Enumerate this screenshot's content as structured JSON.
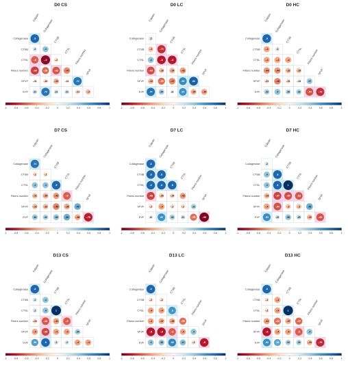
{
  "chart_data": {
    "type": "heatmap",
    "variables": [
      "Calpain",
      "Collagenase",
      "CTSB",
      "CTSL",
      "Fibers number",
      "SFVF",
      "EVF"
    ],
    "colorbar_ticks": [
      "-1",
      "-0.8",
      "-0.6",
      "-0.4",
      "-0.2",
      "0",
      "0.2",
      "0.4",
      "0.6",
      "0.8",
      "1"
    ],
    "colorbar_range": [
      -1,
      1
    ],
    "colors": {
      "negative_end": "#67001f",
      "neutral": "#f7f7f7",
      "positive_end": "#053061",
      "significance_highlight_cyan": "#cdeff8",
      "significance_highlight_pink": "#f9d2ea"
    },
    "panels": [
      {
        "title": "D0 CS",
        "rows": [
          {
            "label": "Collagenase",
            "values": [
              0.8
            ]
          },
          {
            "label": "CTSB",
            "values": [
              0.2,
              0.4
            ]
          },
          {
            "label": "CTSL",
            "values": [
              -0.6,
              -0.9,
              -0.2
            ]
          },
          {
            "label": "Fibers number",
            "values": [
              -0.69,
              -0.56,
              -0.62,
              -0.47
            ]
          },
          {
            "label": "SFVF",
            "values": [
              -0.11,
              -0.19,
              -0.34,
              -0.11,
              0.74
            ]
          },
          {
            "label": "EVF",
            "values": [
              0.21,
              0.74,
              0.21,
              0.21,
              -0.21,
              -0.3
            ]
          }
        ]
      },
      {
        "title": "D0 LC",
        "rows": [
          {
            "label": "Collagenase",
            "values": [
              0.2
            ]
          },
          {
            "label": "CTSB",
            "values": [
              -0.3,
              -0.73
            ]
          },
          {
            "label": "CTSL",
            "values": [
              0.4,
              -0.8,
              -0.8
            ]
          },
          {
            "label": "Fibers number",
            "values": [
              -0.65,
              -0.28,
              -0.34,
              -0.42
            ]
          },
          {
            "label": "SFVF",
            "values": [
              -0.32,
              -0.55,
              -0.47,
              0.65,
              0.83
            ]
          },
          {
            "label": "EVF",
            "values": [
              0.74,
              0.34,
              0.11,
              0.62,
              -0.35,
              -0.39
            ]
          }
        ]
      },
      {
        "title": "D0 HC",
        "rows": [
          {
            "label": "Collagenase",
            "values": [
              0.8
            ]
          },
          {
            "label": "CTSB",
            "values": [
              -0.4,
              0.2
            ]
          },
          {
            "label": "CTSL",
            "values": [
              -0.4,
              -0.4,
              -0.4
            ]
          },
          {
            "label": "Fibers number",
            "values": [
              -0.44,
              -0.44,
              -0.32,
              -0.29
            ]
          },
          {
            "label": "SFVF",
            "values": [
              -0.21,
              -0.48,
              -0.21,
              -0.13,
              0.37
            ]
          },
          {
            "label": "EVF",
            "values": [
              0.32,
              0.4,
              0.28,
              0.32,
              -0.64,
              -0.73
            ]
          }
        ]
      },
      {
        "title": "D7 CS",
        "rows": [
          {
            "label": "Collagenase",
            "values": [
              0.74
            ]
          },
          {
            "label": "CTSB",
            "values": [
              -0.2,
              -0.2
            ]
          },
          {
            "label": "CTSL",
            "values": [
              0.4,
              0.4,
              0.8
            ]
          },
          {
            "label": "Fibers number",
            "values": [
              -0.31,
              -0.35,
              -0.43,
              -0.6
            ]
          },
          {
            "label": "SFVF",
            "values": [
              -0.32,
              -0.32,
              -0.49,
              -0.38,
              0.49
            ]
          },
          {
            "label": "EVF",
            "values": [
              0.36,
              0.32,
              0.38,
              0.49,
              -0.38,
              -0.78
            ]
          }
        ]
      },
      {
        "title": "D7 LC",
        "rows": [
          {
            "label": "Collagenase",
            "values": [
              0.8
            ]
          },
          {
            "label": "CTSB",
            "values": [
              0.8,
              0.8
            ]
          },
          {
            "label": "CTSL",
            "values": [
              0.8,
              0.8,
              0.8
            ]
          },
          {
            "label": "Fibers number",
            "values": [
              -0.68,
              -0.26,
              -0.24,
              -0.42
            ]
          },
          {
            "label": "SFVF",
            "values": [
              -0.2,
              -0.4,
              -0.2,
              -0.2,
              0.32
            ]
          },
          {
            "label": "EVF",
            "values": [
              0.11,
              0.62,
              0.32,
              0.21,
              -0.55,
              -0.95
            ]
          }
        ]
      },
      {
        "title": "D7 HC",
        "rows": [
          {
            "label": "Collagenase",
            "values": [
              0.2
            ]
          },
          {
            "label": "CTSB",
            "values": [
              0.4,
              0.8
            ]
          },
          {
            "label": "CTSL",
            "values": [
              0.4,
              0.8,
              1
            ]
          },
          {
            "label": "Fibers number",
            "values": [
              -0.33,
              -0.67,
              -0.64,
              -0.62
            ]
          },
          {
            "label": "SFVF",
            "values": [
              -0.4,
              -0.64,
              -0.3,
              -0.3,
              0.49
            ]
          },
          {
            "label": "EVF",
            "values": [
              0.63,
              0.21,
              0.38,
              0.25,
              -0.32,
              -0.63
            ]
          }
        ]
      },
      {
        "title": "D13 CS",
        "rows": [
          {
            "label": "Collagenase",
            "values": [
              0.8
            ]
          },
          {
            "label": "CTSB",
            "values": [
              0.2,
              0.4
            ]
          },
          {
            "label": "CTSL",
            "values": [
              0.2,
              0.4,
              1
            ]
          },
          {
            "label": "Fibers number",
            "values": [
              -0.22,
              -0.62,
              -0.41,
              -0.6
            ]
          },
          {
            "label": "SFVF",
            "values": [
              -0.4,
              -0.66,
              -0.4,
              -0.4,
              0.34
            ]
          },
          {
            "label": "EVF",
            "values": [
              0.56,
              0.8,
              0.2,
              0.2,
              -0.4,
              -0.4
            ]
          }
        ]
      },
      {
        "title": "D13 LC",
        "rows": [
          {
            "label": "Collagenase",
            "values": [
              0.8
            ]
          },
          {
            "label": "CTSB",
            "values": [
              -0.2,
              -0.2
            ]
          },
          {
            "label": "CTSL",
            "values": [
              -0.4,
              -0.4,
              0.6
            ]
          },
          {
            "label": "Fibers number",
            "values": [
              -0.4,
              -0.37,
              -0.38,
              -0.55
            ]
          },
          {
            "label": "SFVF",
            "values": [
              -0.8,
              -0.8,
              -0.6,
              -0.4,
              0.4
            ]
          },
          {
            "label": "EVF",
            "values": [
              0.4,
              0.38,
              0.66,
              0.41,
              -0.2,
              -0.8
            ]
          }
        ]
      },
      {
        "title": "D13 HC",
        "rows": [
          {
            "label": "Collagenase",
            "values": [
              0.8
            ]
          },
          {
            "label": "CTSB",
            "values": [
              -0.2,
              -0.4
            ]
          },
          {
            "label": "CTSL",
            "values": [
              -0.2,
              -0.4,
              1
            ]
          },
          {
            "label": "Fibers number",
            "values": [
              -0.41,
              -0.54,
              -0.37,
              -0.57
            ]
          },
          {
            "label": "SFVF",
            "values": [
              -0.8,
              -0.4,
              -0.4,
              -0.6,
              0.4
            ]
          },
          {
            "label": "EVF",
            "values": [
              0.63,
              0.53,
              0.32,
              0.32,
              -0.33,
              -0.75
            ]
          }
        ]
      }
    ]
  }
}
